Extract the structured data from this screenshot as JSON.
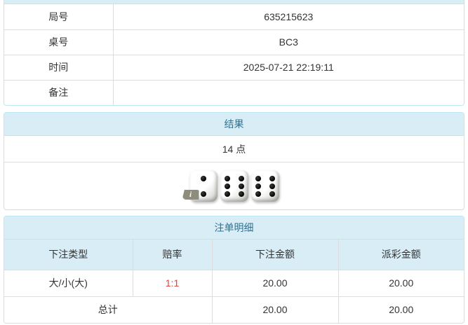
{
  "colors": {
    "accent_bg": "#d9edf7",
    "accent_border": "#bce8f1",
    "accent_text": "#31708f",
    "grid_border": "#dddddd",
    "odds_red": "#e8403a",
    "text": "#333333"
  },
  "info": {
    "rows": [
      {
        "label": "局号",
        "value": "635215623"
      },
      {
        "label": "桌号",
        "value": "BC3"
      },
      {
        "label": "时间",
        "value": "2025-07-21 22:19:11"
      },
      {
        "label": "备注",
        "value": ""
      }
    ]
  },
  "result": {
    "title": "结果",
    "points": "14 点",
    "dice": [
      2,
      6,
      6
    ],
    "info_icon_label": "i"
  },
  "bets": {
    "title": "注单明细",
    "columns": [
      "下注类型",
      "赔率",
      "下注金额",
      "派彩金额"
    ],
    "rows": [
      {
        "type": "大/小(大)",
        "odds": "1:1",
        "amount": "20.00",
        "payout": "20.00"
      }
    ],
    "total": {
      "label": "总计",
      "amount": "20.00",
      "payout": "20.00"
    }
  }
}
